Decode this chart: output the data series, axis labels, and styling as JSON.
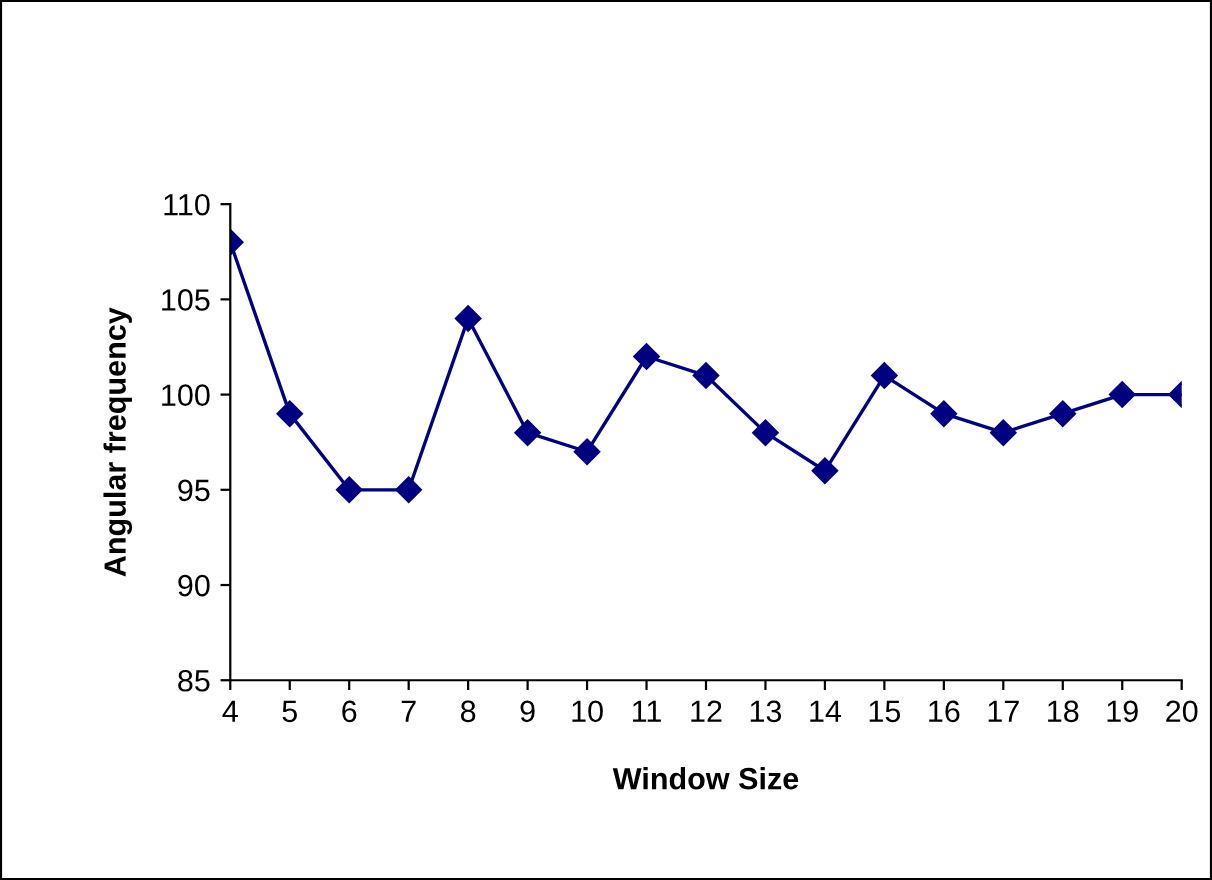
{
  "chart_data": {
    "type": "line",
    "xlabel": "Window Size",
    "ylabel": "Angular frequency",
    "categories": [
      "4",
      "5",
      "6",
      "7",
      "8",
      "9",
      "10",
      "11",
      "12",
      "13",
      "14",
      "15",
      "16",
      "17",
      "18",
      "19",
      "20"
    ],
    "series": [
      {
        "color": "#000080",
        "values": [
          108,
          99,
          95,
          95,
          104,
          98,
          97,
          102,
          101,
          98,
          96,
          101,
          99,
          98,
          99,
          100,
          100
        ]
      }
    ],
    "ylim": [
      85,
      110
    ],
    "yticks": [
      85,
      90,
      95,
      100,
      105,
      110
    ],
    "grid": false,
    "marker": "diamond",
    "line_style": "solid"
  }
}
